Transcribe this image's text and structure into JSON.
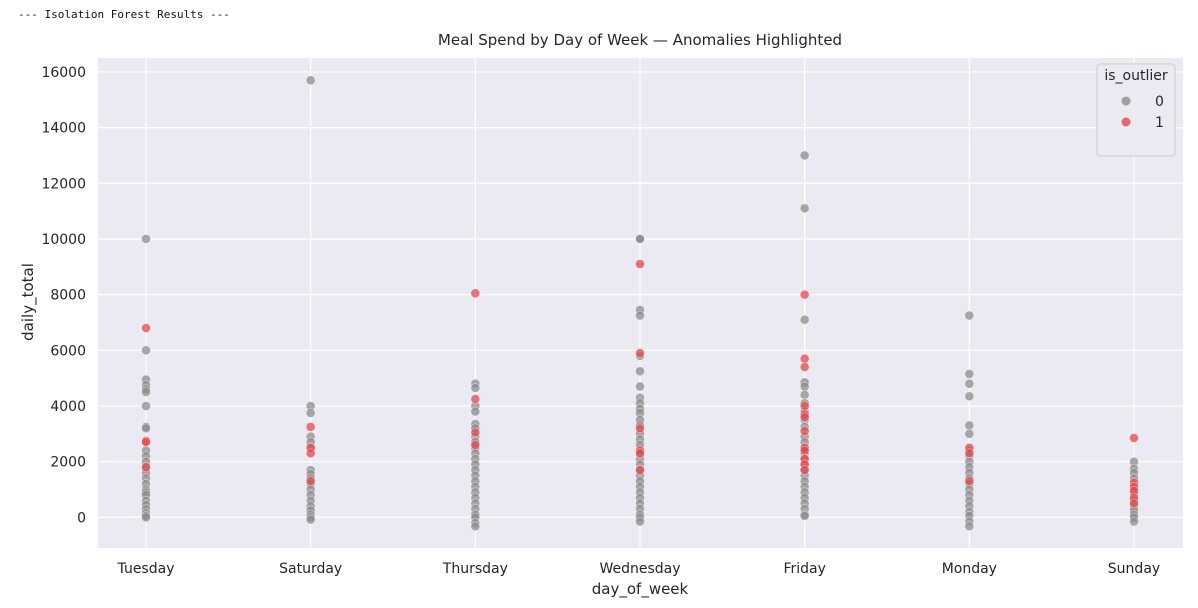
{
  "console": {
    "header": "--- Isolation Forest Results ---"
  },
  "chart_data": {
    "type": "scatter",
    "title": "Meal Spend by Day of Week — Anomalies Highlighted",
    "xlabel": "day_of_week",
    "ylabel": "daily_total",
    "categories": [
      "Tuesday",
      "Saturday",
      "Thursday",
      "Wednesday",
      "Friday",
      "Monday",
      "Sunday"
    ],
    "ylim": [
      -1100,
      16500
    ],
    "yticks": [
      0,
      2000,
      4000,
      6000,
      8000,
      10000,
      12000,
      14000,
      16000
    ],
    "grid": true,
    "background": "#eaeaf2",
    "legend": {
      "title": "is_outlier",
      "placement": "top-right",
      "entries": [
        {
          "label": "0",
          "color": "#8c8c8c"
        },
        {
          "label": "1",
          "color": "#e8464a"
        }
      ]
    },
    "series": [
      {
        "name": "0",
        "color": "#8c8c8c",
        "points": [
          [
            "Tuesday",
            10000
          ],
          [
            "Tuesday",
            6000
          ],
          [
            "Tuesday",
            4950
          ],
          [
            "Tuesday",
            4750
          ],
          [
            "Tuesday",
            4600
          ],
          [
            "Tuesday",
            4500
          ],
          [
            "Tuesday",
            4000
          ],
          [
            "Tuesday",
            3250
          ],
          [
            "Tuesday",
            3200
          ],
          [
            "Tuesday",
            2400
          ],
          [
            "Tuesday",
            2200
          ],
          [
            "Tuesday",
            2000
          ],
          [
            "Tuesday",
            1800
          ],
          [
            "Tuesday",
            1600
          ],
          [
            "Tuesday",
            1400
          ],
          [
            "Tuesday",
            1200
          ],
          [
            "Tuesday",
            1000
          ],
          [
            "Tuesday",
            900
          ],
          [
            "Tuesday",
            800
          ],
          [
            "Tuesday",
            600
          ],
          [
            "Tuesday",
            450
          ],
          [
            "Tuesday",
            300
          ],
          [
            "Tuesday",
            150
          ],
          [
            "Tuesday",
            50
          ],
          [
            "Tuesday",
            0
          ],
          [
            "Saturday",
            15700
          ],
          [
            "Saturday",
            4000
          ],
          [
            "Saturday",
            3750
          ],
          [
            "Saturday",
            2900
          ],
          [
            "Saturday",
            2700
          ],
          [
            "Saturday",
            2500
          ],
          [
            "Saturday",
            1700
          ],
          [
            "Saturday",
            1550
          ],
          [
            "Saturday",
            1400
          ],
          [
            "Saturday",
            1200
          ],
          [
            "Saturday",
            1000
          ],
          [
            "Saturday",
            800
          ],
          [
            "Saturday",
            600
          ],
          [
            "Saturday",
            400
          ],
          [
            "Saturday",
            250
          ],
          [
            "Saturday",
            100
          ],
          [
            "Saturday",
            0
          ],
          [
            "Saturday",
            -80
          ],
          [
            "Thursday",
            4800
          ],
          [
            "Thursday",
            4650
          ],
          [
            "Thursday",
            4000
          ],
          [
            "Thursday",
            3800
          ],
          [
            "Thursday",
            3350
          ],
          [
            "Thursday",
            3200
          ],
          [
            "Thursday",
            2900
          ],
          [
            "Thursday",
            2700
          ],
          [
            "Thursday",
            2500
          ],
          [
            "Thursday",
            2300
          ],
          [
            "Thursday",
            2100
          ],
          [
            "Thursday",
            1900
          ],
          [
            "Thursday",
            1700
          ],
          [
            "Thursday",
            1500
          ],
          [
            "Thursday",
            1300
          ],
          [
            "Thursday",
            1100
          ],
          [
            "Thursday",
            900
          ],
          [
            "Thursday",
            700
          ],
          [
            "Thursday",
            500
          ],
          [
            "Thursday",
            300
          ],
          [
            "Thursday",
            100
          ],
          [
            "Thursday",
            0
          ],
          [
            "Thursday",
            -200
          ],
          [
            "Thursday",
            -320
          ],
          [
            "Wednesday",
            10000
          ],
          [
            "Wednesday",
            10000
          ],
          [
            "Wednesday",
            7450
          ],
          [
            "Wednesday",
            7250
          ],
          [
            "Wednesday",
            5800
          ],
          [
            "Wednesday",
            5250
          ],
          [
            "Wednesday",
            4700
          ],
          [
            "Wednesday",
            4300
          ],
          [
            "Wednesday",
            4100
          ],
          [
            "Wednesday",
            3900
          ],
          [
            "Wednesday",
            3750
          ],
          [
            "Wednesday",
            3500
          ],
          [
            "Wednesday",
            3300
          ],
          [
            "Wednesday",
            3000
          ],
          [
            "Wednesday",
            2800
          ],
          [
            "Wednesday",
            2600
          ],
          [
            "Wednesday",
            2300
          ],
          [
            "Wednesday",
            2100
          ],
          [
            "Wednesday",
            1900
          ],
          [
            "Wednesday",
            1700
          ],
          [
            "Wednesday",
            1500
          ],
          [
            "Wednesday",
            1300
          ],
          [
            "Wednesday",
            1100
          ],
          [
            "Wednesday",
            900
          ],
          [
            "Wednesday",
            700
          ],
          [
            "Wednesday",
            500
          ],
          [
            "Wednesday",
            300
          ],
          [
            "Wednesday",
            100
          ],
          [
            "Wednesday",
            0
          ],
          [
            "Wednesday",
            -150
          ],
          [
            "Friday",
            13000
          ],
          [
            "Friday",
            11100
          ],
          [
            "Friday",
            7100
          ],
          [
            "Friday",
            4850
          ],
          [
            "Friday",
            4700
          ],
          [
            "Friday",
            4400
          ],
          [
            "Friday",
            4100
          ],
          [
            "Friday",
            3800
          ],
          [
            "Friday",
            3500
          ],
          [
            "Friday",
            3250
          ],
          [
            "Friday",
            2900
          ],
          [
            "Friday",
            2700
          ],
          [
            "Friday",
            2500
          ],
          [
            "Friday",
            2300
          ],
          [
            "Friday",
            2100
          ],
          [
            "Friday",
            1900
          ],
          [
            "Friday",
            1700
          ],
          [
            "Friday",
            1500
          ],
          [
            "Friday",
            1300
          ],
          [
            "Friday",
            1100
          ],
          [
            "Friday",
            900
          ],
          [
            "Friday",
            700
          ],
          [
            "Friday",
            500
          ],
          [
            "Friday",
            300
          ],
          [
            "Friday",
            100
          ],
          [
            "Friday",
            50
          ],
          [
            "Monday",
            7250
          ],
          [
            "Monday",
            5150
          ],
          [
            "Monday",
            4800
          ],
          [
            "Monday",
            4350
          ],
          [
            "Monday",
            3300
          ],
          [
            "Monday",
            3000
          ],
          [
            "Monday",
            2400
          ],
          [
            "Monday",
            2200
          ],
          [
            "Monday",
            2000
          ],
          [
            "Monday",
            1800
          ],
          [
            "Monday",
            1600
          ],
          [
            "Monday",
            1400
          ],
          [
            "Monday",
            1200
          ],
          [
            "Monday",
            1000
          ],
          [
            "Monday",
            800
          ],
          [
            "Monday",
            600
          ],
          [
            "Monday",
            400
          ],
          [
            "Monday",
            200
          ],
          [
            "Monday",
            50
          ],
          [
            "Monday",
            -150
          ],
          [
            "Monday",
            -320
          ],
          [
            "Sunday",
            2000
          ],
          [
            "Sunday",
            1750
          ],
          [
            "Sunday",
            1600
          ],
          [
            "Sunday",
            1400
          ],
          [
            "Sunday",
            1000
          ],
          [
            "Sunday",
            800
          ],
          [
            "Sunday",
            600
          ],
          [
            "Sunday",
            400
          ],
          [
            "Sunday",
            250
          ],
          [
            "Sunday",
            100
          ],
          [
            "Sunday",
            0
          ],
          [
            "Sunday",
            -150
          ]
        ]
      },
      {
        "name": "1",
        "color": "#e8464a",
        "points": [
          [
            "Tuesday",
            6800
          ],
          [
            "Tuesday",
            2750
          ],
          [
            "Tuesday",
            2700
          ],
          [
            "Tuesday",
            1800
          ],
          [
            "Saturday",
            3250
          ],
          [
            "Saturday",
            2500
          ],
          [
            "Saturday",
            2300
          ],
          [
            "Saturday",
            1300
          ],
          [
            "Thursday",
            8050
          ],
          [
            "Thursday",
            4250
          ],
          [
            "Thursday",
            3050
          ],
          [
            "Thursday",
            2600
          ],
          [
            "Wednesday",
            9100
          ],
          [
            "Wednesday",
            5900
          ],
          [
            "Wednesday",
            3200
          ],
          [
            "Wednesday",
            2400
          ],
          [
            "Wednesday",
            2300
          ],
          [
            "Wednesday",
            1700
          ],
          [
            "Friday",
            8000
          ],
          [
            "Friday",
            5700
          ],
          [
            "Friday",
            5400
          ],
          [
            "Friday",
            4000
          ],
          [
            "Friday",
            3700
          ],
          [
            "Friday",
            3600
          ],
          [
            "Friday",
            3100
          ],
          [
            "Friday",
            2500
          ],
          [
            "Friday",
            2400
          ],
          [
            "Friday",
            2100
          ],
          [
            "Friday",
            1900
          ],
          [
            "Friday",
            1700
          ],
          [
            "Monday",
            2500
          ],
          [
            "Monday",
            2300
          ],
          [
            "Monday",
            1300
          ],
          [
            "Sunday",
            2850
          ],
          [
            "Sunday",
            1250
          ],
          [
            "Sunday",
            1100
          ],
          [
            "Sunday",
            950
          ],
          [
            "Sunday",
            700
          ],
          [
            "Sunday",
            500
          ]
        ]
      }
    ]
  }
}
